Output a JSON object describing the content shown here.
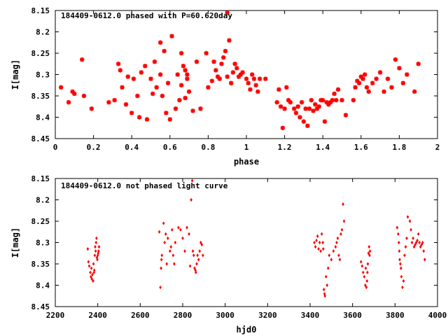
{
  "chart_data": [
    {
      "type": "scatter",
      "title": "184409-0612.0 phased with P=60.620day",
      "xlabel": "phase",
      "ylabel": "I[mag]",
      "xlim": [
        0,
        2
      ],
      "ylim": [
        8.45,
        8.15
      ],
      "y_inverted": true,
      "grid": false,
      "legend": "none",
      "marker": "asterisk",
      "color": "#ff0000",
      "xticks": [
        "0",
        "0.2",
        "0.4",
        "0.6",
        "0.8",
        "1",
        "1.2",
        "1.4",
        "1.6",
        "1.8",
        "2"
      ],
      "yticks": [
        "8.15",
        "8.2",
        "8.25",
        "8.3",
        "8.35",
        "8.4",
        "8.45"
      ],
      "x": [
        0.03,
        0.07,
        0.09,
        0.1,
        0.14,
        0.15,
        0.19,
        0.28,
        0.31,
        0.33,
        0.34,
        0.35,
        0.37,
        0.38,
        0.4,
        0.41,
        0.43,
        0.44,
        0.45,
        0.47,
        0.48,
        0.5,
        0.51,
        0.52,
        0.53,
        0.55,
        0.55,
        0.56,
        0.57,
        0.58,
        0.59,
        0.6,
        0.61,
        0.63,
        0.64,
        0.65,
        0.66,
        0.66,
        0.67,
        0.68,
        0.68,
        0.69,
        0.69,
        0.7,
        0.72,
        0.74,
        0.76,
        0.79,
        0.8,
        0.82,
        0.83,
        0.84,
        0.85,
        0.86,
        0.87,
        0.88,
        0.89,
        0.9,
        0.9,
        0.91,
        0.92,
        0.93,
        0.94,
        0.95,
        0.96,
        0.97,
        0.98,
        1.0,
        1.01,
        1.02,
        1.03,
        1.04,
        1.05,
        1.06,
        1.07,
        1.1,
        1.16,
        1.17,
        1.18,
        1.19,
        1.2,
        1.21,
        1.22,
        1.23,
        1.25,
        1.26,
        1.27,
        1.28,
        1.29,
        1.3,
        1.31,
        1.32,
        1.33,
        1.34,
        1.35,
        1.36,
        1.37,
        1.38,
        1.39,
        1.4,
        1.41,
        1.42,
        1.43,
        1.44,
        1.45,
        1.46,
        1.47,
        1.48,
        1.5,
        1.52,
        1.56,
        1.57,
        1.58,
        1.59,
        1.6,
        1.61,
        1.62,
        1.63,
        1.64,
        1.66,
        1.68,
        1.7,
        1.72,
        1.74,
        1.76,
        1.78,
        1.8,
        1.82,
        1.84,
        1.88,
        1.9
      ],
      "y": [
        8.33,
        8.365,
        8.34,
        8.345,
        8.265,
        8.35,
        8.38,
        8.365,
        8.36,
        8.275,
        8.29,
        8.33,
        8.37,
        8.305,
        8.39,
        8.31,
        8.35,
        8.4,
        8.295,
        8.28,
        8.405,
        8.31,
        8.345,
        8.27,
        8.33,
        8.225,
        8.3,
        8.35,
        8.245,
        8.39,
        8.32,
        8.405,
        8.21,
        8.38,
        8.3,
        8.36,
        8.25,
        8.325,
        8.28,
        8.29,
        8.355,
        8.3,
        8.31,
        8.34,
        8.385,
        8.27,
        8.38,
        8.25,
        8.33,
        8.315,
        8.27,
        8.29,
        8.305,
        8.31,
        8.275,
        8.26,
        8.245,
        8.155,
        8.305,
        8.22,
        8.32,
        8.295,
        8.275,
        8.285,
        8.305,
        8.3,
        8.295,
        8.31,
        8.32,
        8.335,
        8.3,
        8.31,
        8.325,
        8.34,
        8.31,
        8.31,
        8.365,
        8.335,
        8.375,
        8.425,
        8.38,
        8.33,
        8.36,
        8.365,
        8.38,
        8.39,
        8.375,
        8.4,
        8.365,
        8.41,
        8.38,
        8.42,
        8.38,
        8.36,
        8.385,
        8.37,
        8.38,
        8.375,
        8.36,
        8.36,
        8.41,
        8.365,
        8.37,
        8.365,
        8.36,
        8.345,
        8.36,
        8.335,
        8.36,
        8.395,
        8.36,
        8.33,
        8.315,
        8.32,
        8.305,
        8.31,
        8.3,
        8.33,
        8.34,
        8.32,
        8.31,
        8.295,
        8.34,
        8.31,
        8.33,
        8.265,
        8.285,
        8.32,
        8.3,
        8.34,
        8.275
      ]
    },
    {
      "type": "scatter",
      "title": "184409-0612.0 not phased light curve",
      "xlabel": "hjd0",
      "ylabel": "I[mag]",
      "xlim": [
        2200,
        4000
      ],
      "ylim": [
        8.45,
        8.15
      ],
      "y_inverted": true,
      "grid": false,
      "legend": "none",
      "marker": "diamond",
      "color": "#ff0000",
      "xticks": [
        "2200",
        "2400",
        "2600",
        "2800",
        "3000",
        "3200",
        "3400",
        "3600",
        "3800",
        "4000"
      ],
      "yticks": [
        "8.15",
        "8.2",
        "8.25",
        "8.3",
        "8.35",
        "8.4",
        "8.45"
      ],
      "x": [
        2353,
        2356,
        2360,
        2365,
        2368,
        2370,
        2372,
        2375,
        2378,
        2380,
        2382,
        2384,
        2386,
        2388,
        2390,
        2392,
        2394,
        2396,
        2398,
        2400,
        2402,
        2404,
        2406,
        2690,
        2695,
        2698,
        2700,
        2702,
        2710,
        2715,
        2720,
        2725,
        2730,
        2740,
        2745,
        2750,
        2755,
        2760,
        2765,
        2780,
        2790,
        2800,
        2810,
        2820,
        2830,
        2835,
        2840,
        2845,
        2848,
        2852,
        2856,
        2860,
        2862,
        2866,
        2870,
        2875,
        2880,
        2885,
        2890,
        2895,
        3420,
        3425,
        3430,
        3435,
        3440,
        3445,
        3450,
        3455,
        3460,
        3462,
        3465,
        3468,
        3470,
        3475,
        3480,
        3485,
        3490,
        3500,
        3510,
        3520,
        3525,
        3530,
        3535,
        3540,
        3545,
        3550,
        3555,
        3560,
        3640,
        3645,
        3650,
        3655,
        3660,
        3662,
        3665,
        3668,
        3670,
        3672,
        3675,
        3678,
        3680,
        3682,
        3810,
        3815,
        3818,
        3820,
        3822,
        3825,
        3828,
        3830,
        3835,
        3840,
        3845,
        3850,
        3855,
        3860,
        3870,
        3875,
        3880,
        3885,
        3890,
        3895,
        3900,
        3905,
        3910,
        3915,
        3920,
        3925,
        3930,
        3935,
        3940
      ],
      "y": [
        8.315,
        8.345,
        8.355,
        8.37,
        8.38,
        8.36,
        8.385,
        8.375,
        8.39,
        8.35,
        8.37,
        8.365,
        8.33,
        8.31,
        8.32,
        8.3,
        8.29,
        8.335,
        8.34,
        8.33,
        8.325,
        8.32,
        8.31,
        8.275,
        8.405,
        8.36,
        8.34,
        8.33,
        8.255,
        8.3,
        8.28,
        8.35,
        8.29,
        8.32,
        8.31,
        8.27,
        8.33,
        8.35,
        8.3,
        8.265,
        8.27,
        8.29,
        8.32,
        8.265,
        8.28,
        8.355,
        8.2,
        8.155,
        8.32,
        8.33,
        8.36,
        8.365,
        8.37,
        8.35,
        8.33,
        8.34,
        8.32,
        8.3,
        8.305,
        8.33,
        8.3,
        8.31,
        8.295,
        8.285,
        8.315,
        8.3,
        8.32,
        8.28,
        8.3,
        8.315,
        8.41,
        8.42,
        8.425,
        8.38,
        8.4,
        8.36,
        8.33,
        8.34,
        8.32,
        8.31,
        8.3,
        8.29,
        8.33,
        8.34,
        8.28,
        8.27,
        8.21,
        8.25,
        8.345,
        8.355,
        8.37,
        8.38,
        8.4,
        8.36,
        8.405,
        8.39,
        8.37,
        8.35,
        8.325,
        8.31,
        8.33,
        8.32,
        8.265,
        8.28,
        8.3,
        8.32,
        8.34,
        8.35,
        8.36,
        8.38,
        8.405,
        8.39,
        8.33,
        8.31,
        8.29,
        8.24,
        8.25,
        8.27,
        8.3,
        8.29,
        8.31,
        8.305,
        8.3,
        8.295,
        8.28,
        8.3,
        8.31,
        8.305,
        8.3,
        8.32,
        8.34
      ]
    }
  ]
}
